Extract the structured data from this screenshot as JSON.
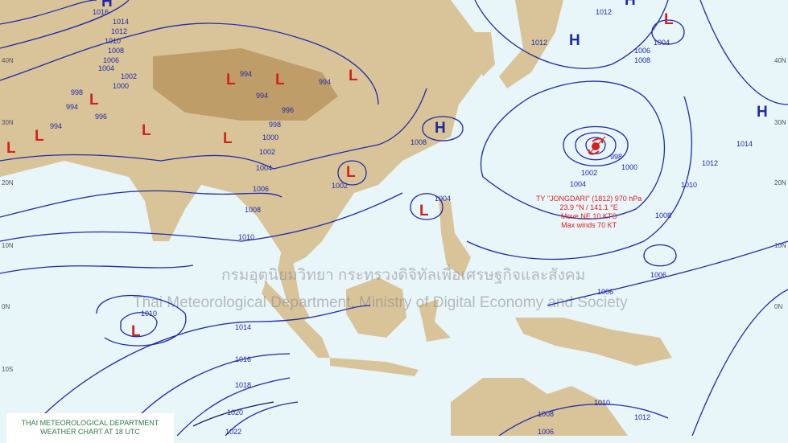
{
  "colors": {
    "sea": "#e8f5f9",
    "land": "#d9c49a",
    "highland": "#b8945c",
    "isobar": "#1f2aa8",
    "low": "#d42020",
    "high": "#1f2aa8"
  },
  "watermark": {
    "thai": "กรมอุตุนิยมวิทยา กระทรวงดิจิทัลเพื่อเศรษฐกิจและสังคม",
    "english": "Thai Meteorological Department, Ministry of Digital Economy and Society"
  },
  "footer": {
    "line1": "THAI METEOROLOGICAL DEPARTMENT",
    "line2": "WEATHER CHART AT  18  UTC"
  },
  "typhoon": {
    "name": "TY \"JONGDARI\" (1812) 970 hPa",
    "position": "23.9 °N / 141.1 °E",
    "movement": "Move NE 10 KTS",
    "winds": "Max winds 70 KT"
  },
  "highs": [
    "H",
    "H",
    "H",
    "H",
    "H"
  ],
  "lows": [
    "L",
    "L",
    "L",
    "L",
    "L",
    "L",
    "L",
    "L",
    "L",
    "L",
    "L",
    "L"
  ],
  "isobar_labels": [
    "1016",
    "1014",
    "1012",
    "1010",
    "1008",
    "1006",
    "1004",
    "1002",
    "1000",
    "998",
    "996",
    "994",
    "994",
    "994",
    "994",
    "994",
    "996",
    "998",
    "1000",
    "1002",
    "1004",
    "1006",
    "1008",
    "1010",
    "1002",
    "1004",
    "1008",
    "1012",
    "1004",
    "1006",
    "1008",
    "1012",
    "1014",
    "1012",
    "1010",
    "1008",
    "998",
    "1000",
    "1002",
    "1004",
    "1006",
    "1010",
    "1014",
    "1016",
    "1018",
    "1020",
    "1022",
    "1006",
    "1010",
    "1012",
    "1008",
    "1006"
  ],
  "latitudes": [
    "40N",
    "30N",
    "20N",
    "10N",
    "0N",
    "10S"
  ]
}
